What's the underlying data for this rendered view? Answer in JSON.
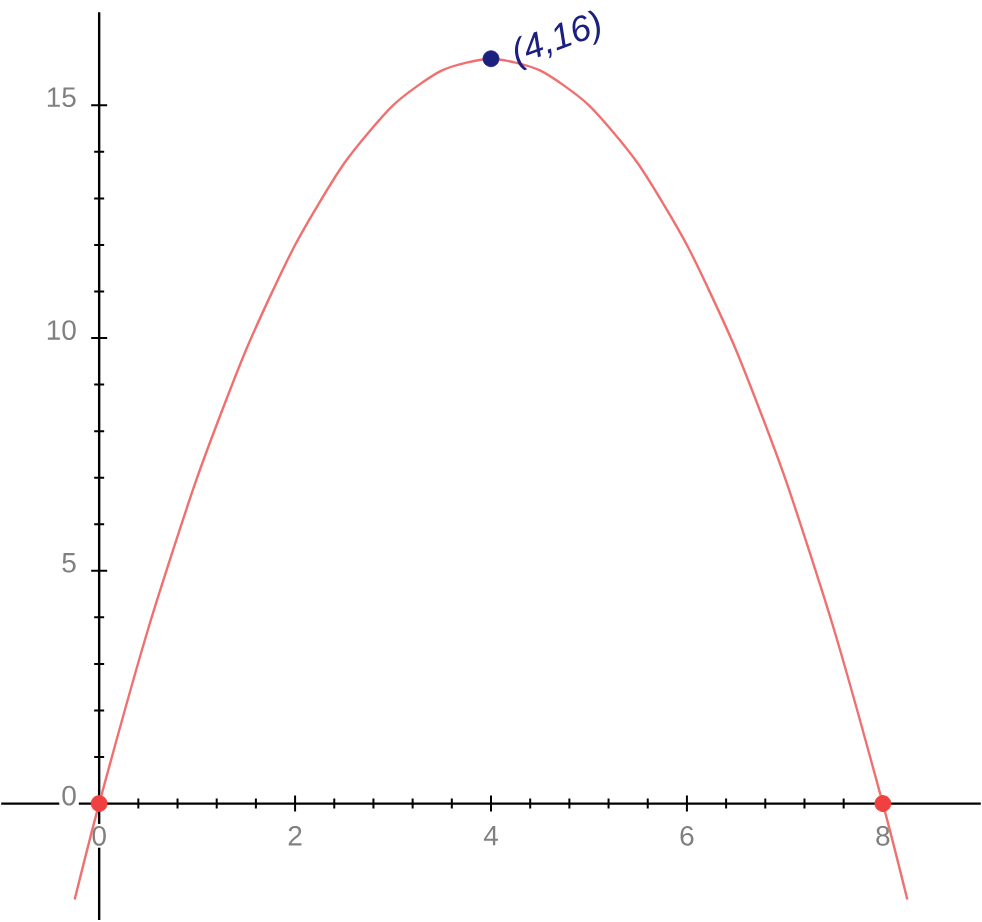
{
  "chart_data": {
    "type": "line",
    "x": [
      -0.25,
      0,
      0.5,
      1,
      1.5,
      2,
      2.5,
      3,
      3.5,
      4,
      4.5,
      5,
      5.5,
      6,
      6.5,
      7,
      7.5,
      8,
      8.25
    ],
    "series": [
      {
        "color": "#f07070",
        "values": [
          -2.06,
          0,
          3.75,
          7,
          9.75,
          12,
          13.75,
          15,
          15.75,
          16,
          15.75,
          15,
          13.75,
          12,
          9.75,
          7,
          3.75,
          0,
          -2.06
        ]
      },
      {
        "type": "scatter",
        "color": "#f04040",
        "x": [
          0,
          8
        ],
        "values": [
          0,
          0
        ]
      },
      {
        "type": "scatter",
        "color": "#1a1f80",
        "x": [
          4
        ],
        "values": [
          16
        ]
      }
    ],
    "annotations": [
      {
        "text": "(4,16)",
        "x": 4,
        "y": 16
      }
    ],
    "xlim": [
      -1,
      9
    ],
    "ylim": [
      -2.5,
      17
    ],
    "xticks": [
      0,
      2,
      4,
      6,
      8
    ],
    "yticks": [
      0,
      5,
      10,
      15
    ],
    "grid": false
  }
}
